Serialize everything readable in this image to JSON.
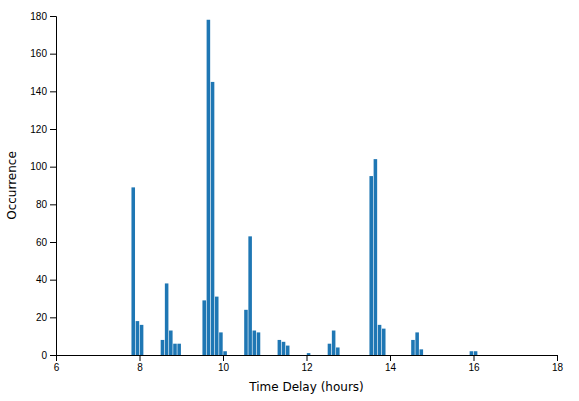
{
  "chart_data": {
    "type": "bar",
    "xlabel": "Time Delay (hours)",
    "ylabel": "Occurrence",
    "x": [
      7.85,
      7.95,
      8.05,
      8.55,
      8.65,
      8.75,
      8.85,
      8.95,
      9.55,
      9.65,
      9.75,
      9.85,
      9.95,
      10.05,
      10.55,
      10.65,
      10.75,
      10.85,
      11.35,
      11.45,
      11.55,
      12.05,
      12.55,
      12.65,
      12.75,
      13.55,
      13.65,
      13.75,
      13.85,
      14.55,
      14.65,
      14.75,
      15.95,
      16.05
    ],
    "values": [
      89,
      18,
      16,
      8,
      38,
      13,
      6,
      6,
      29,
      178,
      145,
      31,
      12,
      2,
      24,
      63,
      13,
      12,
      8,
      7,
      5,
      1,
      6,
      13,
      4,
      95,
      104,
      16,
      14,
      8,
      12,
      3,
      2,
      2
    ],
    "xlim": [
      6,
      18
    ],
    "ylim": [
      0,
      180
    ],
    "xticks": [
      6,
      8,
      10,
      12,
      14,
      16,
      18
    ],
    "yticks": [
      0,
      20,
      40,
      60,
      80,
      100,
      120,
      140,
      160,
      180
    ]
  }
}
